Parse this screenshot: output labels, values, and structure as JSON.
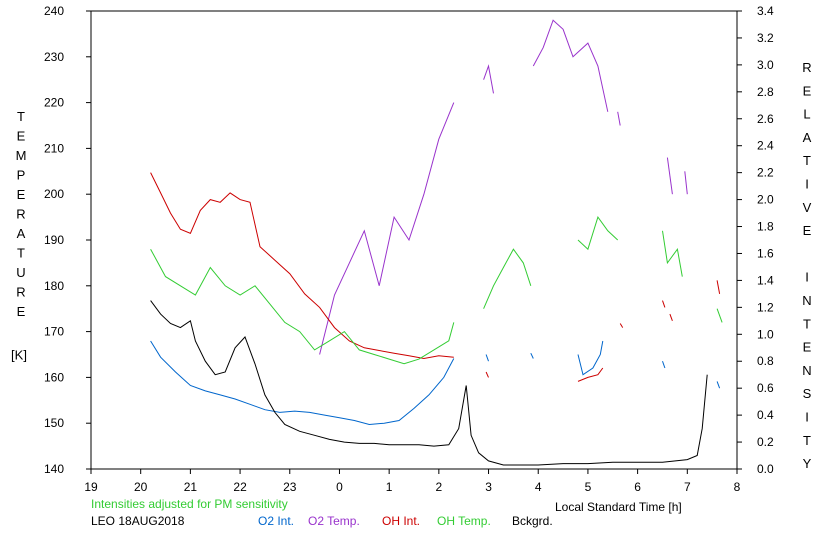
{
  "chart_data": {
    "type": "line",
    "title": "",
    "ylabel_left": "TEMPERATURE",
    "ylabel_left_unit": "[K]",
    "ylabel_right": "RELATIVE INTENSITY",
    "xlabel": "Local Standard Time [h]",
    "note": "Intensities adjusted for PM sensitivity",
    "station_date": "LEO 18AUG2018",
    "xlim": [
      19,
      8
    ],
    "x_ticks": [
      "19",
      "20",
      "21",
      "22",
      "23",
      "0",
      "1",
      "2",
      "3",
      "4",
      "5",
      "6",
      "7",
      "8"
    ],
    "ylim_left": [
      140,
      240
    ],
    "y_ticks_left": [
      "140",
      "150",
      "160",
      "170",
      "180",
      "190",
      "200",
      "210",
      "220",
      "230",
      "240"
    ],
    "ylim_right": [
      0.0,
      3.4
    ],
    "y_ticks_right": [
      "0.0",
      "0.2",
      "0.4",
      "0.6",
      "0.8",
      "1.0",
      "1.2",
      "1.4",
      "1.6",
      "1.8",
      "2.0",
      "2.2",
      "2.4",
      "2.6",
      "2.8",
      "3.0",
      "3.2",
      "3.4"
    ],
    "legend": [
      {
        "name": "O2 Int.",
        "color": "#0066cc"
      },
      {
        "name": "O2 Temp.",
        "color": "#9933cc"
      },
      {
        "name": "OH Int.",
        "color": "#cc0000"
      },
      {
        "name": "OH Temp.",
        "color": "#33cc33"
      },
      {
        "name": "Bckgrd.",
        "color": "#000000"
      }
    ],
    "series": [
      {
        "name": "O2 Int.",
        "axis": "right",
        "color": "#0066cc",
        "segments": [
          [
            [
              20.2,
              0.95
            ],
            [
              20.4,
              0.83
            ],
            [
              20.7,
              0.72
            ],
            [
              21.0,
              0.62
            ],
            [
              21.3,
              0.58
            ],
            [
              21.6,
              0.55
            ],
            [
              21.9,
              0.52
            ],
            [
              22.2,
              0.48
            ],
            [
              22.5,
              0.44
            ],
            [
              22.8,
              0.42
            ],
            [
              23.1,
              0.43
            ],
            [
              23.4,
              0.42
            ],
            [
              23.7,
              0.4
            ],
            [
              24.0,
              0.38
            ],
            [
              24.3,
              0.36
            ],
            [
              24.6,
              0.33
            ],
            [
              24.9,
              0.34
            ],
            [
              25.2,
              0.36
            ],
            [
              25.5,
              0.45
            ],
            [
              25.8,
              0.55
            ],
            [
              26.1,
              0.68
            ],
            [
              26.3,
              0.82
            ]
          ],
          [
            [
              26.95,
              0.85
            ],
            [
              27.0,
              0.8
            ]
          ],
          [
            [
              27.85,
              0.86
            ],
            [
              27.9,
              0.82
            ]
          ],
          [
            [
              28.8,
              0.85
            ],
            [
              28.9,
              0.7
            ],
            [
              29.1,
              0.75
            ],
            [
              29.25,
              0.85
            ],
            [
              29.3,
              0.95
            ]
          ],
          [
            [
              30.5,
              0.8
            ],
            [
              30.55,
              0.75
            ]
          ],
          [
            [
              31.6,
              0.65
            ],
            [
              31.65,
              0.6
            ]
          ]
        ]
      },
      {
        "name": "O2 Temp.",
        "axis": "left",
        "color": "#9933cc",
        "segments": [
          [
            [
              23.6,
              165
            ],
            [
              23.9,
              178
            ],
            [
              24.2,
              185
            ],
            [
              24.5,
              192
            ],
            [
              24.8,
              180
            ],
            [
              25.1,
              195
            ],
            [
              25.4,
              190
            ],
            [
              25.7,
              200
            ],
            [
              26.0,
              212
            ],
            [
              26.3,
              220
            ]
          ],
          [
            [
              26.9,
              225
            ],
            [
              27.0,
              228
            ],
            [
              27.1,
              222
            ]
          ],
          [
            [
              27.9,
              228
            ],
            [
              28.1,
              232
            ],
            [
              28.3,
              238
            ],
            [
              28.5,
              236
            ],
            [
              28.7,
              230
            ],
            [
              29.0,
              233
            ],
            [
              29.2,
              228
            ],
            [
              29.4,
              218
            ]
          ],
          [
            [
              29.6,
              218
            ],
            [
              29.65,
              215
            ]
          ],
          [
            [
              30.6,
              208
            ],
            [
              30.7,
              200
            ]
          ],
          [
            [
              30.95,
              205
            ],
            [
              31.0,
              200
            ]
          ]
        ]
      },
      {
        "name": "OH Int.",
        "axis": "right",
        "color": "#cc0000",
        "segments": [
          [
            [
              20.2,
              2.2
            ],
            [
              20.4,
              2.05
            ],
            [
              20.6,
              1.9
            ],
            [
              20.8,
              1.78
            ],
            [
              21.0,
              1.75
            ],
            [
              21.2,
              1.92
            ],
            [
              21.4,
              2.0
            ],
            [
              21.6,
              1.98
            ],
            [
              21.8,
              2.05
            ],
            [
              22.0,
              2.0
            ],
            [
              22.2,
              1.98
            ],
            [
              22.4,
              1.65
            ],
            [
              22.7,
              1.55
            ],
            [
              23.0,
              1.45
            ],
            [
              23.3,
              1.3
            ],
            [
              23.6,
              1.2
            ],
            [
              23.9,
              1.05
            ],
            [
              24.2,
              0.95
            ],
            [
              24.5,
              0.9
            ],
            [
              24.8,
              0.88
            ],
            [
              25.1,
              0.86
            ],
            [
              25.4,
              0.84
            ],
            [
              25.7,
              0.82
            ],
            [
              26.0,
              0.84
            ],
            [
              26.3,
              0.83
            ]
          ],
          [
            [
              26.95,
              0.72
            ],
            [
              27.0,
              0.68
            ]
          ],
          [
            [
              28.8,
              0.65
            ],
            [
              29.0,
              0.68
            ],
            [
              29.2,
              0.7
            ],
            [
              29.3,
              0.75
            ]
          ],
          [
            [
              29.65,
              1.08
            ],
            [
              29.7,
              1.05
            ]
          ],
          [
            [
              30.5,
              1.25
            ],
            [
              30.55,
              1.2
            ]
          ],
          [
            [
              30.65,
              1.15
            ],
            [
              30.7,
              1.1
            ]
          ],
          [
            [
              31.6,
              1.4
            ],
            [
              31.65,
              1.3
            ]
          ]
        ]
      },
      {
        "name": "OH Temp.",
        "axis": "left",
        "color": "#33cc33",
        "segments": [
          [
            [
              20.2,
              188
            ],
            [
              20.5,
              182
            ],
            [
              20.8,
              180
            ],
            [
              21.1,
              178
            ],
            [
              21.4,
              184
            ],
            [
              21.7,
              180
            ],
            [
              22.0,
              178
            ],
            [
              22.3,
              180
            ],
            [
              22.6,
              176
            ],
            [
              22.9,
              172
            ],
            [
              23.2,
              170
            ],
            [
              23.5,
              166
            ],
            [
              23.8,
              168
            ],
            [
              24.1,
              170
            ],
            [
              24.4,
              166
            ],
            [
              24.7,
              165
            ],
            [
              25.0,
              164
            ],
            [
              25.3,
              163
            ],
            [
              25.6,
              164
            ],
            [
              25.9,
              166
            ],
            [
              26.2,
              168
            ],
            [
              26.3,
              172
            ]
          ],
          [
            [
              26.9,
              175
            ],
            [
              27.1,
              180
            ],
            [
              27.3,
              184
            ],
            [
              27.5,
              188
            ],
            [
              27.7,
              185
            ],
            [
              27.85,
              180
            ]
          ],
          [
            [
              28.8,
              190
            ],
            [
              29.0,
              188
            ],
            [
              29.2,
              195
            ],
            [
              29.4,
              192
            ],
            [
              29.6,
              190
            ]
          ],
          [
            [
              30.5,
              192
            ],
            [
              30.6,
              185
            ],
            [
              30.8,
              188
            ],
            [
              30.9,
              182
            ]
          ],
          [
            [
              31.6,
              175
            ],
            [
              31.7,
              172
            ]
          ]
        ]
      },
      {
        "name": "Bckgrd.",
        "axis": "right",
        "color": "#000000",
        "segments": [
          [
            [
              20.2,
              1.25
            ],
            [
              20.4,
              1.15
            ],
            [
              20.6,
              1.08
            ],
            [
              20.8,
              1.05
            ],
            [
              21.0,
              1.1
            ],
            [
              21.1,
              0.95
            ],
            [
              21.3,
              0.8
            ],
            [
              21.5,
              0.7
            ],
            [
              21.7,
              0.72
            ],
            [
              21.9,
              0.9
            ],
            [
              22.1,
              0.98
            ],
            [
              22.3,
              0.78
            ],
            [
              22.5,
              0.55
            ],
            [
              22.7,
              0.42
            ],
            [
              22.9,
              0.33
            ],
            [
              23.2,
              0.28
            ],
            [
              23.5,
              0.25
            ],
            [
              23.8,
              0.22
            ],
            [
              24.1,
              0.2
            ],
            [
              24.4,
              0.19
            ],
            [
              24.7,
              0.19
            ],
            [
              25.0,
              0.18
            ],
            [
              25.3,
              0.18
            ],
            [
              25.6,
              0.18
            ],
            [
              25.9,
              0.17
            ],
            [
              26.2,
              0.18
            ],
            [
              26.4,
              0.3
            ],
            [
              26.55,
              0.62
            ],
            [
              26.65,
              0.25
            ],
            [
              26.8,
              0.12
            ],
            [
              27.0,
              0.06
            ],
            [
              27.3,
              0.03
            ],
            [
              27.6,
              0.03
            ],
            [
              28.0,
              0.03
            ],
            [
              28.5,
              0.04
            ],
            [
              29.0,
              0.04
            ],
            [
              29.5,
              0.05
            ],
            [
              30.0,
              0.05
            ],
            [
              30.5,
              0.05
            ],
            [
              31.0,
              0.07
            ],
            [
              31.2,
              0.1
            ],
            [
              31.3,
              0.3
            ],
            [
              31.4,
              0.7
            ]
          ]
        ]
      }
    ]
  }
}
